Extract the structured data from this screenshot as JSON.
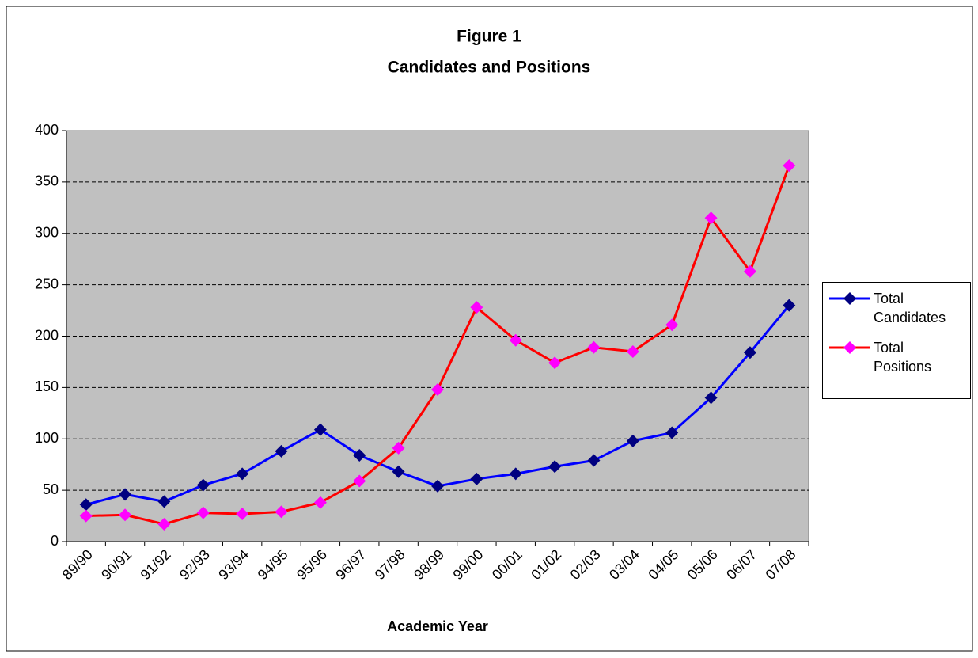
{
  "chart_data": {
    "type": "line",
    "title": "Figure 1",
    "subtitle": "Candidates and Positions",
    "x_label": "Academic Year",
    "categories": [
      "89/90",
      "90/91",
      "91/92",
      "92/93",
      "93/94",
      "94/95",
      "95/96",
      "96/97",
      "97/98",
      "98/99",
      "99/00",
      "00/01",
      "01/02",
      "02/03",
      "03/04",
      "04/05",
      "05/06",
      "06/07",
      "07/08"
    ],
    "series": [
      {
        "name": "Total Candidates",
        "color": "#0000ff",
        "marker_color": "#000080",
        "values": [
          36,
          46,
          39,
          55,
          66,
          88,
          109,
          84,
          68,
          54,
          61,
          66,
          73,
          79,
          98,
          106,
          140,
          184,
          230
        ]
      },
      {
        "name": "Total Positions",
        "color": "#ff0000",
        "marker_color": "#ff00ff",
        "values": [
          25,
          26,
          17,
          28,
          27,
          29,
          38,
          59,
          91,
          148,
          228,
          196,
          174,
          189,
          185,
          211,
          315,
          263,
          366
        ]
      }
    ],
    "ylim": [
      0,
      400
    ],
    "yticks": [
      0,
      50,
      100,
      150,
      200,
      250,
      300,
      350,
      400
    ],
    "grid": true,
    "legend": "right"
  }
}
